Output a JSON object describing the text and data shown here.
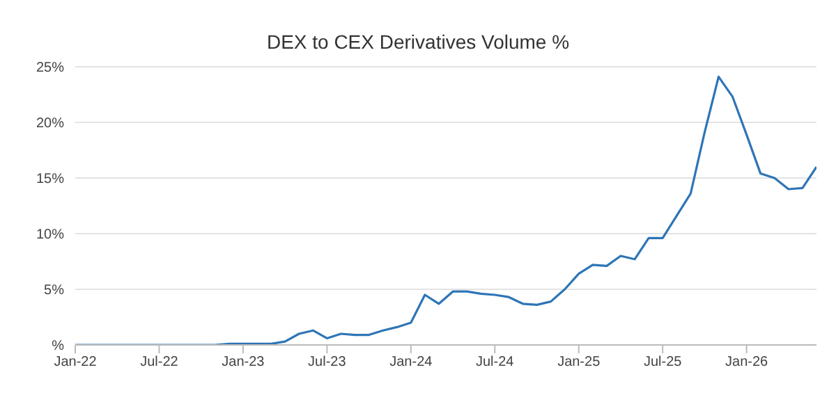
{
  "chart_data": {
    "type": "line",
    "title": "DEX to CEX Derivatives Volume %",
    "x": [
      "2022-01",
      "2022-02",
      "2022-03",
      "2022-04",
      "2022-05",
      "2022-06",
      "2022-07",
      "2022-08",
      "2022-09",
      "2022-10",
      "2022-11",
      "2022-12",
      "2023-01",
      "2023-02",
      "2023-03",
      "2023-04",
      "2023-05",
      "2023-06",
      "2023-07",
      "2023-08",
      "2023-09",
      "2023-10",
      "2023-11",
      "2023-12",
      "2024-01",
      "2024-02",
      "2024-03",
      "2024-04",
      "2024-05",
      "2024-06",
      "2024-07",
      "2024-08",
      "2024-09",
      "2024-10",
      "2024-11",
      "2024-12",
      "2025-01",
      "2025-02",
      "2025-03",
      "2025-04",
      "2025-05",
      "2025-06",
      "2025-07",
      "2025-08",
      "2025-09",
      "2025-10",
      "2025-11",
      "2025-12",
      "2026-01",
      "2026-02",
      "2026-03",
      "2026-04",
      "2026-05",
      "2026-06"
    ],
    "series": [
      {
        "color": "#2e75b6",
        "values": [
          0,
          0,
          0,
          0,
          0,
          0,
          0,
          0,
          0,
          0,
          0,
          0.1,
          0.1,
          0.1,
          0.1,
          0.3,
          1.0,
          1.3,
          0.6,
          1.0,
          0.9,
          0.9,
          1.3,
          1.6,
          2.0,
          4.5,
          3.7,
          4.8,
          4.8,
          4.6,
          4.5,
          4.3,
          3.7,
          3.6,
          3.9,
          5.0,
          6.4,
          7.2,
          7.1,
          8.0,
          7.7,
          9.6,
          9.6,
          11.6,
          13.6,
          19.1,
          24.1,
          22.3,
          18.9,
          15.4,
          15.0,
          14.0,
          14.1,
          16.0
        ]
      }
    ],
    "xlim": [
      "2022-01",
      "2026-06"
    ],
    "xticks": [
      {
        "value": "2022-01",
        "label": "Jan-22"
      },
      {
        "value": "2022-07",
        "label": "Jul-22"
      },
      {
        "value": "2023-01",
        "label": "Jan-23"
      },
      {
        "value": "2023-07",
        "label": "Jul-23"
      },
      {
        "value": "2024-01",
        "label": "Jan-24"
      },
      {
        "value": "2024-07",
        "label": "Jul-24"
      },
      {
        "value": "2025-01",
        "label": "Jan-25"
      },
      {
        "value": "2025-07",
        "label": "Jul-25"
      },
      {
        "value": "2026-01",
        "label": "Jan-26"
      }
    ],
    "ylim": [
      0,
      25
    ],
    "yticks": [
      {
        "value": 0,
        "label": "%"
      },
      {
        "value": 5,
        "label": "5%"
      },
      {
        "value": 10,
        "label": "10%"
      },
      {
        "value": 15,
        "label": "15%"
      },
      {
        "value": 20,
        "label": "20%"
      },
      {
        "value": 25,
        "label": "25%"
      }
    ],
    "grid": "y",
    "legend": false,
    "marker": "none",
    "line_style": "solid"
  }
}
